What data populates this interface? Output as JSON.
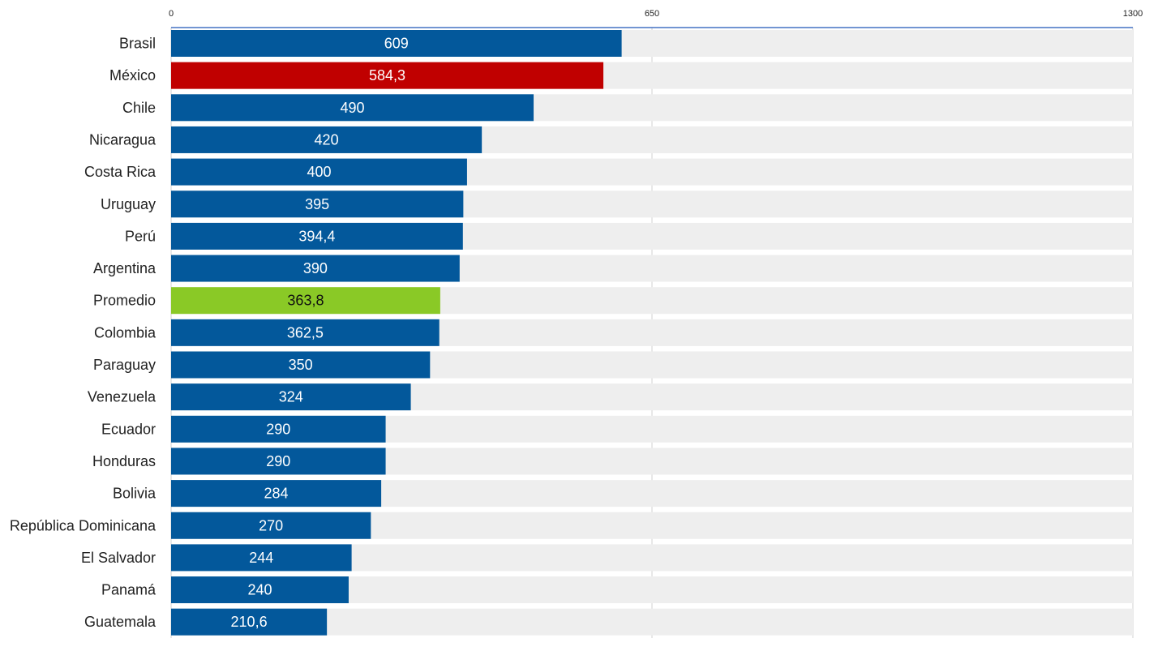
{
  "chart_data": {
    "type": "bar",
    "orientation": "horizontal",
    "title": "",
    "xlabel": "",
    "ylabel": "",
    "xlim": [
      0,
      1300
    ],
    "ticks": [
      "0",
      "650",
      "1300"
    ],
    "tick_values": [
      0,
      650,
      1300
    ],
    "grid": true,
    "legend": "none",
    "categories": [
      "Brasil",
      "México",
      "Chile",
      "Nicaragua",
      "Costa Rica",
      "Uruguay",
      "Perú",
      "Argentina",
      "Promedio",
      "Colombia",
      "Paraguay",
      "Venezuela",
      "Ecuador",
      "Honduras",
      "Bolivia",
      "República Dominicana",
      "El Salvador",
      "Panamá",
      "Guatemala"
    ],
    "values": [
      609,
      584.3,
      490,
      420,
      400,
      395,
      394.4,
      390,
      363.8,
      362.5,
      350,
      324,
      290,
      290,
      284,
      270,
      244,
      240,
      210.6
    ],
    "value_labels": [
      "609",
      "584,3",
      "490",
      "420",
      "400",
      "395",
      "394,4",
      "390",
      "363,8",
      "362,5",
      "350",
      "324",
      "290",
      "290",
      "284",
      "270",
      "244",
      "240",
      "210,6"
    ],
    "highlight": {
      "México": "red",
      "Promedio": "green"
    }
  },
  "colors": {
    "default": "#03589b",
    "red": "#c00000",
    "green": "#8ac926",
    "track": "#eeeeee",
    "axis": "#4472c4",
    "grid": "#d0d0d0",
    "label_light": "#ffffff",
    "label_dark": "#111111"
  }
}
